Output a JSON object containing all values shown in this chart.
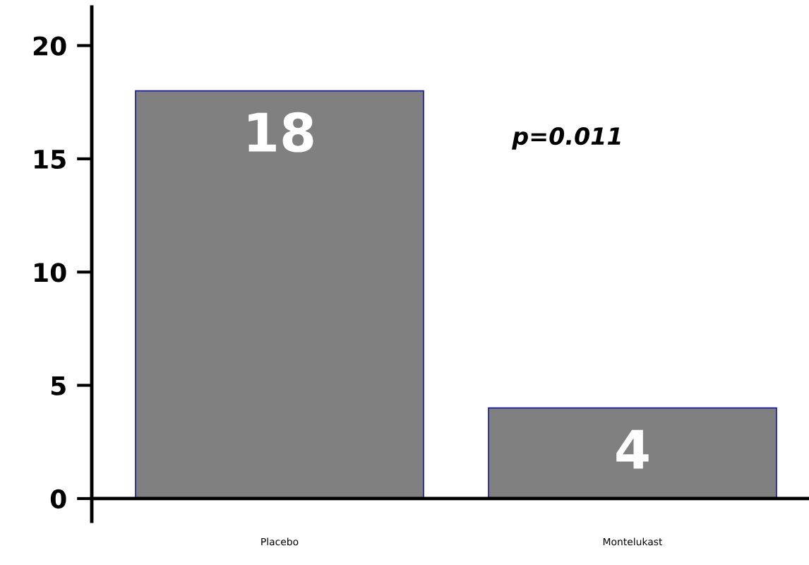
{
  "chart_data": {
    "type": "bar",
    "categories": [
      "Placebo",
      "Montelukast"
    ],
    "values": [
      18,
      4
    ],
    "color": "#808080",
    "ylim": [
      -1,
      21.7
    ],
    "yticks": [
      0,
      5,
      10,
      15,
      20
    ],
    "data_labels": true,
    "legend": false,
    "annotations": [
      "p=0.011"
    ]
  }
}
